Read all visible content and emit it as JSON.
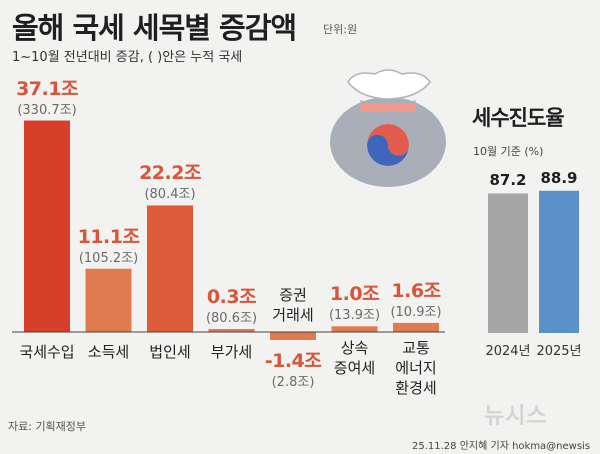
{
  "title": "올해 국세 세목별 증감액",
  "unit": "단위:원",
  "subtitle": "1~10월 전년대비 증감, ( )안은 누적 국세",
  "source": "자료: 기획재정부",
  "credit": "25.11.28 안지혜 기자 hokma@newsis",
  "watermark": "뉴시스",
  "colors": {
    "accent": "#d8553a",
    "bar_2024": "#a6a6a6",
    "bar_2025": "#5b90c8",
    "bag": "#a9aeb8"
  },
  "icon": "money-bag-icon",
  "chart_data": [
    {
      "type": "bar",
      "title": "올해 국세 세목별 증감액",
      "subtitle": "1~10월 전년대비 증감, ( )안은 누적 국세",
      "unit": "단위:원",
      "categories": [
        {
          "lines": [
            "국세수입"
          ]
        },
        {
          "lines": [
            "소득세"
          ]
        },
        {
          "lines": [
            "법인세"
          ]
        },
        {
          "lines": [
            "부가세"
          ]
        },
        {
          "lines": [
            "증권",
            "거래세"
          ]
        },
        {
          "lines": [
            "상속",
            "증여세"
          ]
        },
        {
          "lines": [
            "교통",
            "에너지",
            "환경세"
          ]
        }
      ],
      "values": [
        37.1,
        11.1,
        22.2,
        0.3,
        -1.4,
        1.0,
        1.6
      ],
      "value_labels": [
        "37.1조",
        "11.1조",
        "22.2조",
        "0.3조",
        "-1.4조",
        "1.0조",
        "1.6조"
      ],
      "cumulative_labels": [
        "(330.7조)",
        "(105.2조)",
        "(80.4조)",
        "(80.6조)",
        "(2.8조)",
        "(13.9조)",
        "(10.9조)"
      ],
      "colors": [
        "#d6402b",
        "#e07a4f",
        "#dc5c3a",
        "#e07a4f",
        "#e07a4f",
        "#e07a4f",
        "#e07a4f"
      ]
    },
    {
      "type": "bar",
      "title": "세수진도율",
      "subtitle": "10월 기준 (%)",
      "categories": [
        "2024년",
        "2025년"
      ],
      "values": [
        87.2,
        88.9
      ],
      "value_labels": [
        "87.2",
        "88.9"
      ],
      "colors": [
        "#a6a6a6",
        "#5b90c8"
      ]
    }
  ]
}
